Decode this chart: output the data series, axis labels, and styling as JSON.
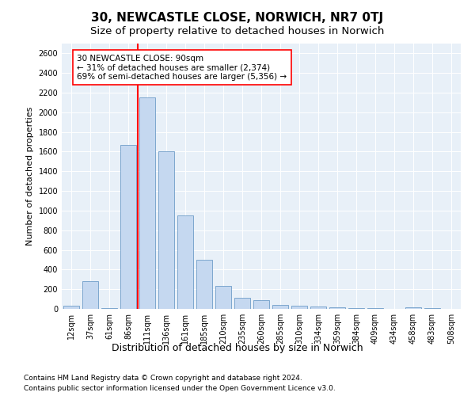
{
  "title": "30, NEWCASTLE CLOSE, NORWICH, NR7 0TJ",
  "subtitle": "Size of property relative to detached houses in Norwich",
  "xlabel": "Distribution of detached houses by size in Norwich",
  "ylabel": "Number of detached properties",
  "footnote1": "Contains HM Land Registry data © Crown copyright and database right 2024.",
  "footnote2": "Contains public sector information licensed under the Open Government Licence v3.0.",
  "annotation_line1": "30 NEWCASTLE CLOSE: 90sqm",
  "annotation_line2": "← 31% of detached houses are smaller (2,374)",
  "annotation_line3": "69% of semi-detached houses are larger (5,356) →",
  "bar_color": "#c5d8f0",
  "bar_edge_color": "#5a8fc0",
  "categories": [
    "12sqm",
    "37sqm",
    "61sqm",
    "86sqm",
    "111sqm",
    "136sqm",
    "161sqm",
    "185sqm",
    "210sqm",
    "235sqm",
    "260sqm",
    "285sqm",
    "310sqm",
    "334sqm",
    "359sqm",
    "384sqm",
    "409sqm",
    "434sqm",
    "458sqm",
    "483sqm",
    "508sqm"
  ],
  "values": [
    30,
    280,
    5,
    1670,
    2150,
    1600,
    950,
    500,
    235,
    110,
    90,
    40,
    35,
    25,
    20,
    10,
    5,
    3,
    15,
    5,
    2
  ],
  "ylim": [
    0,
    2700
  ],
  "yticks": [
    0,
    200,
    400,
    600,
    800,
    1000,
    1200,
    1400,
    1600,
    1800,
    2000,
    2200,
    2400,
    2600
  ],
  "plot_bg_color": "#e8f0f8",
  "title_fontsize": 11,
  "subtitle_fontsize": 9.5,
  "annotation_fontsize": 7.5,
  "xlabel_fontsize": 9,
  "ylabel_fontsize": 8,
  "tick_fontsize": 7,
  "footnote_fontsize": 6.5
}
